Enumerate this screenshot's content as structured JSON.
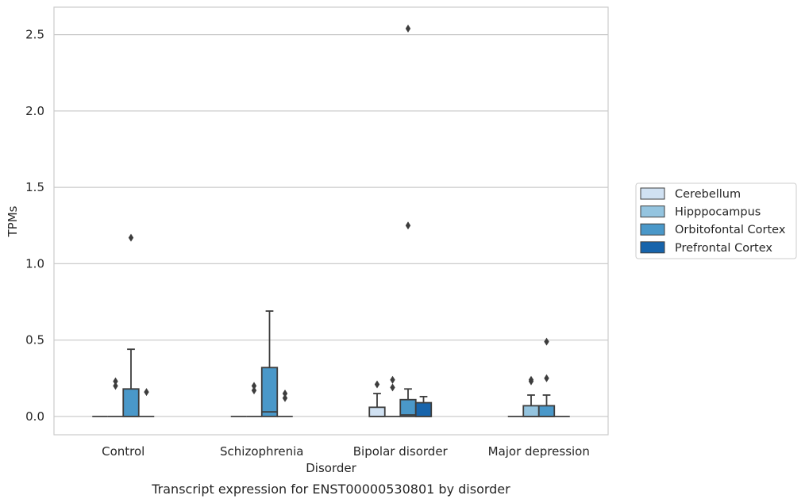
{
  "chart_data": {
    "type": "box",
    "caption": "Transcript expression for ENST00000530801 by disorder",
    "xlabel": "Disorder",
    "ylabel": "TPMs",
    "ylim": [
      -0.12,
      2.68
    ],
    "yticks": [
      0.0,
      0.5,
      1.0,
      1.5,
      2.0,
      2.5
    ],
    "ytick_labels": [
      "0.0",
      "0.5",
      "1.0",
      "1.5",
      "2.0",
      "2.5"
    ],
    "grid": true,
    "legend_position": "right",
    "categories": [
      "Control",
      "Schizophrenia",
      "Bipolar disorder",
      "Major depression"
    ],
    "series": [
      {
        "name": "Cerebellum",
        "color": "#d0e1f2",
        "boxes": [
          {
            "q1": 0,
            "median": 0,
            "q3": 0,
            "whislo": 0,
            "whishi": 0,
            "fliers": []
          },
          {
            "q1": 0,
            "median": 0,
            "q3": 0,
            "whislo": 0,
            "whishi": 0,
            "fliers": []
          },
          {
            "q1": 0,
            "median": 0,
            "q3": 0.06,
            "whislo": 0,
            "whishi": 0.15,
            "fliers": [
              0.21
            ]
          },
          {
            "q1": 0,
            "median": 0,
            "q3": 0,
            "whislo": 0,
            "whishi": 0,
            "fliers": []
          }
        ]
      },
      {
        "name": "Hipppocampus",
        "color": "#94c4df",
        "boxes": [
          {
            "q1": 0,
            "median": 0,
            "q3": 0,
            "whislo": 0,
            "whishi": 0,
            "fliers": [
              0.2,
              0.23
            ]
          },
          {
            "q1": 0,
            "median": 0,
            "q3": 0,
            "whislo": 0,
            "whishi": 0,
            "fliers": [
              0.17,
              0.2
            ]
          },
          {
            "q1": 0,
            "median": 0,
            "q3": 0,
            "whislo": 0,
            "whishi": 0,
            "fliers": [
              0.19,
              0.24
            ]
          },
          {
            "q1": 0,
            "median": 0,
            "q3": 0.07,
            "whislo": 0,
            "whishi": 0.14,
            "fliers": [
              0.23,
              0.24
            ]
          }
        ]
      },
      {
        "name": "Orbitofontal Cortex",
        "color": "#4a98c9",
        "boxes": [
          {
            "q1": 0,
            "median": 0,
            "q3": 0.18,
            "whislo": 0,
            "whishi": 0.44,
            "fliers": [
              1.17
            ]
          },
          {
            "q1": 0,
            "median": 0.03,
            "q3": 0.32,
            "whislo": 0,
            "whishi": 0.69,
            "fliers": []
          },
          {
            "q1": 0,
            "median": 0.01,
            "q3": 0.11,
            "whislo": 0,
            "whishi": 0.18,
            "fliers": [
              1.25,
              2.54
            ]
          },
          {
            "q1": 0,
            "median": 0,
            "q3": 0.07,
            "whislo": 0,
            "whishi": 0.14,
            "fliers": [
              0.25,
              0.49
            ]
          }
        ]
      },
      {
        "name": "Prefrontal Cortex",
        "color": "#1764ab",
        "boxes": [
          {
            "q1": 0,
            "median": 0,
            "q3": 0,
            "whislo": 0,
            "whishi": 0,
            "fliers": [
              0.16
            ]
          },
          {
            "q1": 0,
            "median": 0,
            "q3": 0,
            "whislo": 0,
            "whishi": 0,
            "fliers": [
              0.12,
              0.15
            ]
          },
          {
            "q1": 0,
            "median": 0,
            "q3": 0.09,
            "whislo": 0,
            "whishi": 0.13,
            "fliers": []
          },
          {
            "q1": 0,
            "median": 0,
            "q3": 0,
            "whislo": 0,
            "whishi": 0,
            "fliers": []
          }
        ]
      }
    ]
  }
}
